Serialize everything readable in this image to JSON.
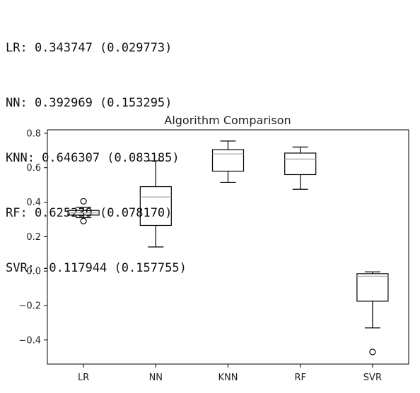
{
  "console": {
    "lines": [
      "LR: 0.343747 (0.029773)",
      "NN: 0.392969 (0.153295)",
      "KNN: 0.646307 (0.083185)",
      "RF: 0.625239 (0.078170)",
      "SVR: -0.117944 (0.157755)"
    ]
  },
  "chart_data": {
    "type": "box",
    "title": "Algorithm Comparison",
    "xlabel": "",
    "ylabel": "",
    "categories": [
      "LR",
      "NN",
      "KNN",
      "RF",
      "SVR"
    ],
    "ylim": [
      -0.54,
      0.82
    ],
    "yticks": [
      0.8,
      0.6,
      0.4,
      0.2,
      0.0,
      -0.2,
      -0.4
    ],
    "ytick_labels": [
      "0.8",
      "0.6",
      "0.4",
      "0.2",
      "0.0",
      "−0.2",
      "−0.4"
    ],
    "grid": false,
    "boxes": [
      {
        "label": "LR",
        "whisker_low": 0.31,
        "q1": 0.325,
        "median": 0.338,
        "q3": 0.352,
        "whisker_high": 0.37,
        "fliers": [
          0.405,
          0.29
        ]
      },
      {
        "label": "NN",
        "whisker_low": 0.14,
        "q1": 0.265,
        "median": 0.43,
        "q3": 0.49,
        "whisker_high": 0.64,
        "fliers": []
      },
      {
        "label": "KNN",
        "whisker_low": 0.515,
        "q1": 0.58,
        "median": 0.68,
        "q3": 0.705,
        "whisker_high": 0.755,
        "fliers": []
      },
      {
        "label": "RF",
        "whisker_low": 0.475,
        "q1": 0.56,
        "median": 0.65,
        "q3": 0.685,
        "whisker_high": 0.72,
        "fliers": []
      },
      {
        "label": "SVR",
        "whisker_low": -0.33,
        "q1": -0.175,
        "median": -0.03,
        "q3": -0.015,
        "whisker_high": -0.005,
        "fliers": [
          -0.47
        ]
      }
    ],
    "colors": {
      "box": "#000000",
      "median": "#b0b0b0",
      "axes": "#000000"
    }
  }
}
